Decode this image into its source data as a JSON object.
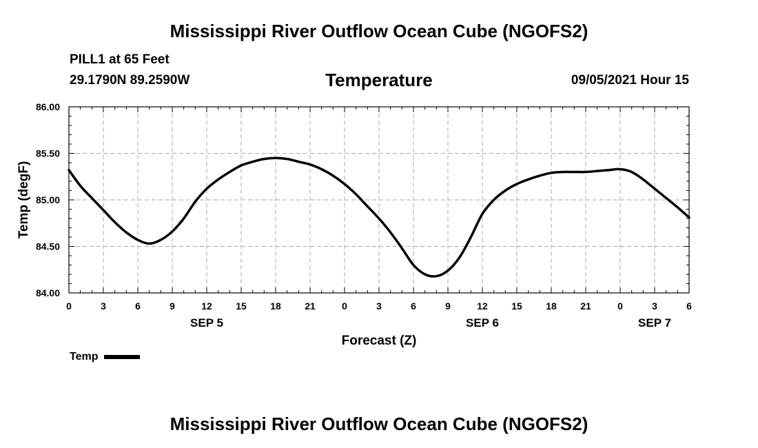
{
  "page": {
    "title": "Mississippi River Outflow Ocean Cube (NGOFS2)",
    "station": "PILL1 at 65 Feet",
    "coordinates": "29.1790N  89.2590W",
    "variable": "Temperature",
    "datetime": "09/05/2021 Hour 15",
    "footer_title": "Mississippi River Outflow Ocean Cube (NGOFS2)"
  },
  "chart_data": {
    "type": "line",
    "title": "Temperature",
    "xlabel": "Forecast (Z)",
    "ylabel": "Temp (degF)",
    "xlim": [
      0,
      54
    ],
    "ylim": [
      84.0,
      86.0
    ],
    "grid": true,
    "x_tick_values": [
      0,
      3,
      6,
      9,
      12,
      15,
      18,
      21,
      24,
      27,
      30,
      33,
      36,
      39,
      42,
      45,
      48,
      51,
      54
    ],
    "x_tick_labels": [
      "0",
      "3",
      "6",
      "9",
      "12",
      "15",
      "18",
      "21",
      "0",
      "3",
      "6",
      "9",
      "12",
      "15",
      "18",
      "21",
      "0",
      "3",
      "6"
    ],
    "y_tick_values": [
      84.0,
      84.5,
      85.0,
      85.5,
      86.0
    ],
    "y_tick_labels": [
      "84.00",
      "84.50",
      "85.00",
      "85.50",
      "86.00"
    ],
    "date_labels": [
      {
        "text": "SEP 5",
        "x": 12
      },
      {
        "text": "SEP 6",
        "x": 36
      },
      {
        "text": "SEP 7",
        "x": 51
      }
    ],
    "series": [
      {
        "name": "Temp",
        "color": "#000000",
        "x": [
          0,
          1,
          2,
          3,
          4,
          5,
          6,
          7,
          8,
          9,
          10,
          11,
          12,
          13,
          14,
          15,
          16,
          17,
          18,
          19,
          20,
          21,
          22,
          23,
          24,
          25,
          26,
          27,
          28,
          29,
          30,
          31,
          32,
          33,
          34,
          35,
          36,
          37,
          38,
          39,
          40,
          41,
          42,
          43,
          44,
          45,
          46,
          47,
          48,
          49,
          50,
          51,
          52,
          53,
          54
        ],
        "values": [
          85.32,
          85.15,
          85.02,
          84.89,
          84.76,
          84.65,
          84.57,
          84.53,
          84.57,
          84.66,
          84.8,
          84.98,
          85.12,
          85.22,
          85.3,
          85.37,
          85.41,
          85.44,
          85.45,
          85.44,
          85.41,
          85.38,
          85.33,
          85.26,
          85.17,
          85.06,
          84.93,
          84.8,
          84.65,
          84.48,
          84.3,
          84.2,
          84.18,
          84.24,
          84.38,
          84.6,
          84.85,
          85.0,
          85.1,
          85.17,
          85.22,
          85.26,
          85.29,
          85.3,
          85.3,
          85.3,
          85.31,
          85.32,
          85.33,
          85.3,
          85.22,
          85.12,
          85.02,
          84.92,
          84.81
        ]
      }
    ],
    "legend": {
      "position": "bottom-left",
      "label": "Temp"
    }
  }
}
